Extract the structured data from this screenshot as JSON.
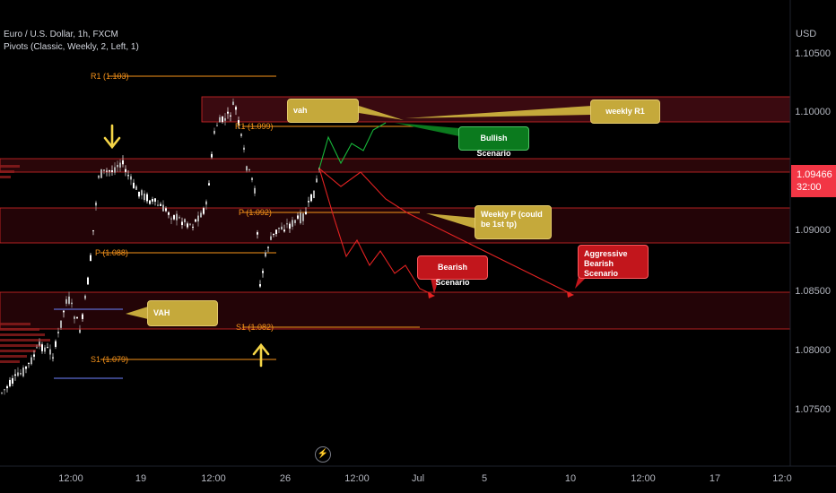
{
  "header": {
    "symbol_line": "Euro / U.S. Dollar, 1h, FXCM",
    "indicator_line": "Pivots (Classic, Weekly, 2, Left, 1)"
  },
  "price_axis": {
    "currency": "USD",
    "labels": [
      "1.10500",
      "1.10000",
      "1.09000",
      "1.08500",
      "1.08000",
      "1.07500"
    ],
    "current_price": "1.09466",
    "countdown": "32:00"
  },
  "time_axis": {
    "labels": [
      "12:00",
      "19",
      "12:00",
      "26",
      "12:00",
      "Jul",
      "5",
      "10",
      "12:00",
      "17",
      "12:0"
    ]
  },
  "pivots": {
    "r1_a": "R1 (1.103)",
    "r1_b": "R1 (1.099)",
    "p_a": "P (1.088)",
    "p_b": "P (1.092)",
    "s1_a": "S1 (1.082)",
    "s1_b": "S1 (1.079)"
  },
  "callouts": {
    "vah_top": "vah",
    "weekly_r1": "weekly R1",
    "bullish": "Bullish Scenario",
    "weekly_p": "Weekly P (could be 1st tp)",
    "vah_left": "VAH",
    "bearish": "Bearish Scenario",
    "aggressive_line1": "Aggressive",
    "aggressive_line2": "Bearish Scenario"
  },
  "colors": {
    "background": "#000000",
    "zone_line": "#d8282a",
    "pivot": "#f7931a",
    "vah_line": "#5b6ad0",
    "bullish": "#17b83a",
    "bearish": "#e32222",
    "price_badge": "#f23645",
    "arrow_yellow": "#f5d547"
  },
  "icons": {
    "light": "lightning-icon",
    "down_arrow": "arrow-down-icon",
    "up_arrow": "arrow-up-icon"
  }
}
